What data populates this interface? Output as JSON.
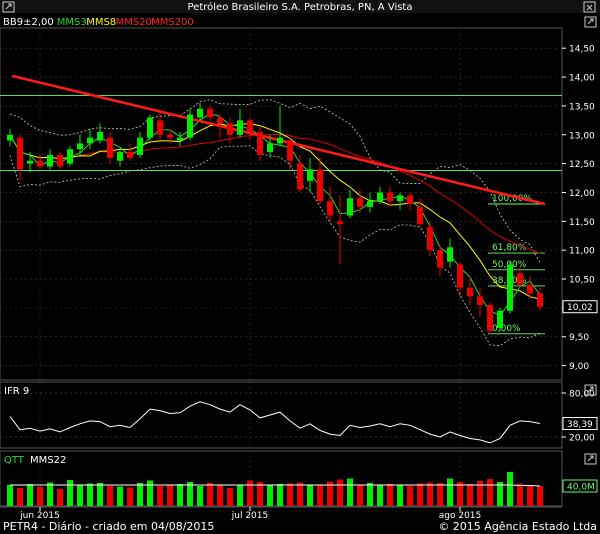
{
  "header": {
    "title": "Petróleo Brasileiro S.A. Petrobras, PN, A Vista",
    "legend": [
      {
        "label": "BB9±2,00",
        "color": "#ffffff"
      },
      {
        "label": "MMS3",
        "color": "#22dd22"
      },
      {
        "label": "MMS8",
        "color": "#ffff00"
      },
      {
        "label": "MMS20",
        "color": "#ff2222"
      },
      {
        "label": "MMS200",
        "color": "#ff2222"
      }
    ]
  },
  "footer": {
    "left": "PETR4 - Diário - criado em 04/08/2015",
    "right": "© 2015 Agência Estado Ltda"
  },
  "x_labels": [
    {
      "label": "jun 2015",
      "index": 3
    },
    {
      "label": "jul 2015",
      "index": 24
    },
    {
      "label": "ago 2015",
      "index": 45
    }
  ],
  "colors": {
    "up": "#00ee00",
    "down": "#ee0000",
    "grid": "#3a3a3a",
    "axis": "#ffffff",
    "bb": "#bbbbbb",
    "mms3": "#22dd22",
    "mms8": "#ffff00",
    "mms20": "#dd0000",
    "mms200": "#ff1a1a",
    "fib": "#66ff66",
    "ifr": "#ffffff"
  },
  "chart_data": [
    {
      "name": "price",
      "type": "candlestick",
      "y_ticks": [
        "14,50",
        "14,00",
        "13,50",
        "13,00",
        "12,50",
        "12,00",
        "11,50",
        "11,00",
        "10,50",
        "10,00",
        "9,50",
        "9,00"
      ],
      "ylim": [
        8.75,
        14.85
      ],
      "last_label": "10,02",
      "candles": [
        [
          12.9,
          13.1,
          12.8,
          13.0
        ],
        [
          12.95,
          13.0,
          12.2,
          12.4
        ],
        [
          12.5,
          12.7,
          12.35,
          12.55
        ],
        [
          12.55,
          12.65,
          12.4,
          12.45
        ],
        [
          12.45,
          12.75,
          12.4,
          12.65
        ],
        [
          12.65,
          12.7,
          12.4,
          12.45
        ],
        [
          12.5,
          12.8,
          12.45,
          12.75
        ],
        [
          12.75,
          13.0,
          12.65,
          12.85
        ],
        [
          12.85,
          13.1,
          12.75,
          12.95
        ],
        [
          12.9,
          13.2,
          12.85,
          13.05
        ],
        [
          12.95,
          13.05,
          12.5,
          12.6
        ],
        [
          12.55,
          12.75,
          12.45,
          12.7
        ],
        [
          12.7,
          12.85,
          12.55,
          12.6
        ],
        [
          12.65,
          13.05,
          12.6,
          12.95
        ],
        [
          12.95,
          13.35,
          12.9,
          13.3
        ],
        [
          13.25,
          13.4,
          12.9,
          13.0
        ],
        [
          13.0,
          13.1,
          12.85,
          12.95
        ],
        [
          12.9,
          13.05,
          12.8,
          12.95
        ],
        [
          12.95,
          13.45,
          12.9,
          13.35
        ],
        [
          13.3,
          13.55,
          13.25,
          13.45
        ],
        [
          13.45,
          13.5,
          13.25,
          13.3
        ],
        [
          13.3,
          13.35,
          12.95,
          13.2
        ],
        [
          13.2,
          13.3,
          12.85,
          13.0
        ],
        [
          13.0,
          13.45,
          12.95,
          13.25
        ],
        [
          13.25,
          13.3,
          12.9,
          13.05
        ],
        [
          13.05,
          13.15,
          12.55,
          12.65
        ],
        [
          12.7,
          13.0,
          12.6,
          12.85
        ],
        [
          12.85,
          13.5,
          12.8,
          12.95
        ],
        [
          12.9,
          12.95,
          12.4,
          12.55
        ],
        [
          12.5,
          12.65,
          12.0,
          12.05
        ],
        [
          12.2,
          12.6,
          12.0,
          12.4
        ],
        [
          12.4,
          12.6,
          11.8,
          11.85
        ],
        [
          11.85,
          12.1,
          11.5,
          11.6
        ],
        [
          11.5,
          11.95,
          10.75,
          11.45
        ],
        [
          11.6,
          12.05,
          11.55,
          11.9
        ],
        [
          11.9,
          12.05,
          11.65,
          11.75
        ],
        [
          11.75,
          12.0,
          11.65,
          11.85
        ],
        [
          11.85,
          12.1,
          11.8,
          12.0
        ],
        [
          12.0,
          12.1,
          11.75,
          11.85
        ],
        [
          11.85,
          12.0,
          11.7,
          11.95
        ],
        [
          11.95,
          12.0,
          11.7,
          11.8
        ],
        [
          11.75,
          11.9,
          11.4,
          11.45
        ],
        [
          11.4,
          11.5,
          10.9,
          11.0
        ],
        [
          11.0,
          11.1,
          10.55,
          10.7
        ],
        [
          10.8,
          11.2,
          10.7,
          11.05
        ],
        [
          10.75,
          10.8,
          10.2,
          10.35
        ],
        [
          10.35,
          10.55,
          10.05,
          10.2
        ],
        [
          10.2,
          10.35,
          9.85,
          10.05
        ],
        [
          10.05,
          10.1,
          9.55,
          9.6
        ],
        [
          9.65,
          10.0,
          9.6,
          9.95
        ],
        [
          9.95,
          10.8,
          9.9,
          10.75
        ],
        [
          10.6,
          10.7,
          10.35,
          10.4
        ],
        [
          10.4,
          10.55,
          10.15,
          10.25
        ],
        [
          10.25,
          10.35,
          9.95,
          10.02
        ]
      ],
      "fib_levels": [
        {
          "label": "100,00%",
          "value": 11.8
        },
        {
          "label": "61,80%",
          "value": 10.95
        },
        {
          "label": "50,00%",
          "value": 10.66
        },
        {
          "label": "38,20%",
          "value": 10.38
        },
        {
          "label": "0,00%",
          "value": 9.55
        }
      ],
      "hlines": [
        13.68,
        12.38
      ]
    },
    {
      "name": "ifr",
      "type": "line",
      "label": "IFR 9",
      "y_ticks": [
        "80,00",
        "20,00"
      ],
      "ylim": [
        5,
        95
      ],
      "last_label": "38,39",
      "values": [
        48,
        30,
        32,
        28,
        31,
        27,
        33,
        38,
        42,
        41,
        34,
        36,
        33,
        45,
        58,
        56,
        52,
        53,
        62,
        68,
        64,
        58,
        54,
        64,
        57,
        46,
        50,
        54,
        42,
        32,
        38,
        29,
        24,
        22,
        36,
        33,
        35,
        38,
        34,
        38,
        36,
        30,
        24,
        20,
        27,
        22,
        18,
        16,
        12,
        18,
        36,
        42,
        41,
        38.39
      ]
    },
    {
      "name": "volume",
      "type": "bar",
      "label": "QTT",
      "ma_label": "MMS22",
      "last_label": "40,0M",
      "ylim": [
        0,
        80
      ],
      "values": [
        42,
        36,
        44,
        38,
        47,
        34,
        52,
        43,
        45,
        46,
        40,
        39,
        37,
        46,
        51,
        40,
        42,
        44,
        48,
        40,
        46,
        42,
        36,
        41,
        51,
        48,
        43,
        44,
        45,
        47,
        43,
        41,
        49,
        53,
        55,
        43,
        46,
        41,
        44,
        42,
        40,
        45,
        47,
        46,
        55,
        48,
        44,
        50,
        54,
        48,
        68,
        45,
        42,
        40
      ],
      "ma": [
        42,
        42,
        42,
        42,
        42,
        42,
        42,
        42,
        42,
        42,
        42,
        42,
        42,
        42,
        42,
        42,
        42,
        42,
        42,
        42,
        42,
        42,
        42,
        42,
        42,
        42,
        42,
        42,
        42,
        42,
        42,
        42,
        42,
        42,
        42,
        42,
        42,
        42,
        42,
        42,
        42,
        42,
        42,
        42,
        42,
        42,
        42,
        42,
        42,
        42,
        42,
        41,
        41,
        40
      ]
    }
  ]
}
